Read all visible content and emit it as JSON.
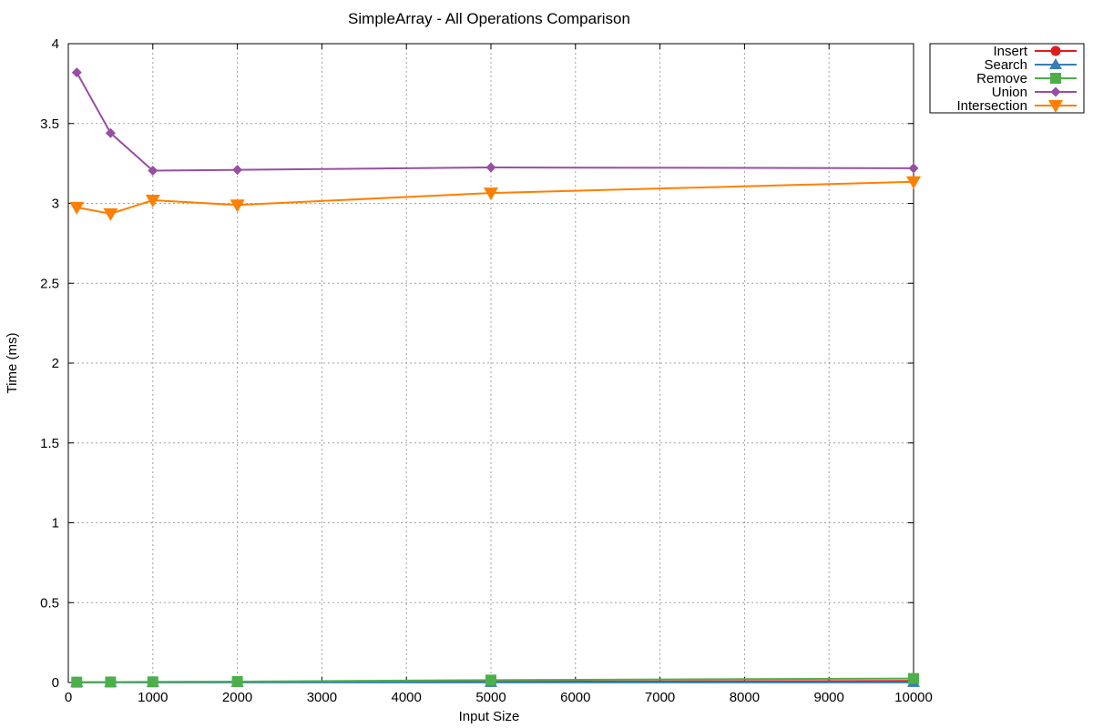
{
  "chart_data": {
    "type": "line",
    "title": "SimpleArray - All Operations Comparison",
    "xlabel": "Input Size",
    "ylabel": "Time (ms)",
    "xlim": [
      0,
      10000
    ],
    "ylim": [
      0,
      4
    ],
    "xticks": [
      0,
      1000,
      2000,
      3000,
      4000,
      5000,
      6000,
      7000,
      8000,
      9000,
      10000
    ],
    "yticks": [
      0,
      0.5,
      1,
      1.5,
      2,
      2.5,
      3,
      3.5,
      4
    ],
    "ytick_labels": [
      "0",
      "0.5",
      "1",
      "1.5",
      "2",
      "2.5",
      "3",
      "3.5",
      "4"
    ],
    "grid": true,
    "legend_position": "top-right outside",
    "x": [
      100,
      500,
      1000,
      2000,
      5000,
      10000
    ],
    "series": [
      {
        "name": "Insert",
        "color": "#e41a1c",
        "marker": "circle",
        "values": [
          0.001,
          0.002,
          0.002,
          0.003,
          0.005,
          0.01
        ]
      },
      {
        "name": "Search",
        "color": "#377eb8",
        "marker": "triangle-up",
        "values": [
          0.001,
          0.001,
          0.001,
          0.001,
          0.001,
          0.001
        ]
      },
      {
        "name": "Remove",
        "color": "#4daf4a",
        "marker": "square",
        "values": [
          0.002,
          0.003,
          0.004,
          0.006,
          0.015,
          0.025
        ]
      },
      {
        "name": "Union",
        "color": "#984ea3",
        "marker": "diamond",
        "values": [
          3.82,
          3.44,
          3.205,
          3.21,
          3.225,
          3.22
        ]
      },
      {
        "name": "Intersection",
        "color": "#ff7f00",
        "marker": "triangle-down",
        "values": [
          2.975,
          2.935,
          3.02,
          2.99,
          3.065,
          3.135
        ]
      }
    ]
  }
}
